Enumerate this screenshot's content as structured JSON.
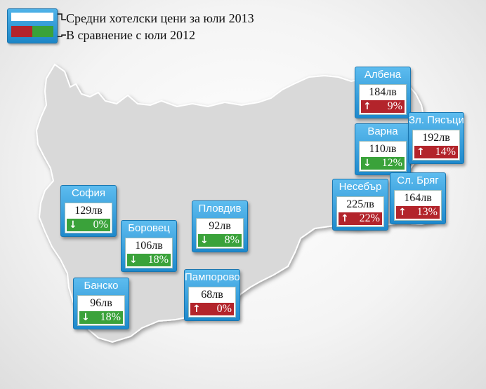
{
  "legend": {
    "line1": "Средни хотелски цени за юли 2013",
    "line2": "В сравнение с юли 2012",
    "colors": {
      "increase": "#b3242b",
      "decrease": "#3aa23a"
    }
  },
  "cities": [
    {
      "id": "albena",
      "name": "Албена",
      "price": "184лв",
      "change": "9%",
      "direction": "up"
    },
    {
      "id": "varna",
      "name": "Варна",
      "price": "110лв",
      "change": "12%",
      "direction": "down"
    },
    {
      "id": "zlatni-pyasatsi",
      "name": "Зл. Пясъци",
      "price": "192лв",
      "change": "14%",
      "direction": "up"
    },
    {
      "id": "nesebar",
      "name": "Несебър",
      "price": "225лв",
      "change": "22%",
      "direction": "up"
    },
    {
      "id": "slanchev-bryag",
      "name": "Сл. Бряг",
      "price": "164лв",
      "change": "13%",
      "direction": "up"
    },
    {
      "id": "sofia",
      "name": "София",
      "price": "129лв",
      "change": "0%",
      "direction": "down"
    },
    {
      "id": "plovdiv",
      "name": "Пловдив",
      "price": "92лв",
      "change": "8%",
      "direction": "down"
    },
    {
      "id": "borovets",
      "name": "Боровец",
      "price": "106лв",
      "change": "18%",
      "direction": "down"
    },
    {
      "id": "pamporovo",
      "name": "Пампорово",
      "price": "68лв",
      "change": "0%",
      "direction": "up"
    },
    {
      "id": "bansko",
      "name": "Банско",
      "price": "96лв",
      "change": "18%",
      "direction": "down"
    }
  ]
}
